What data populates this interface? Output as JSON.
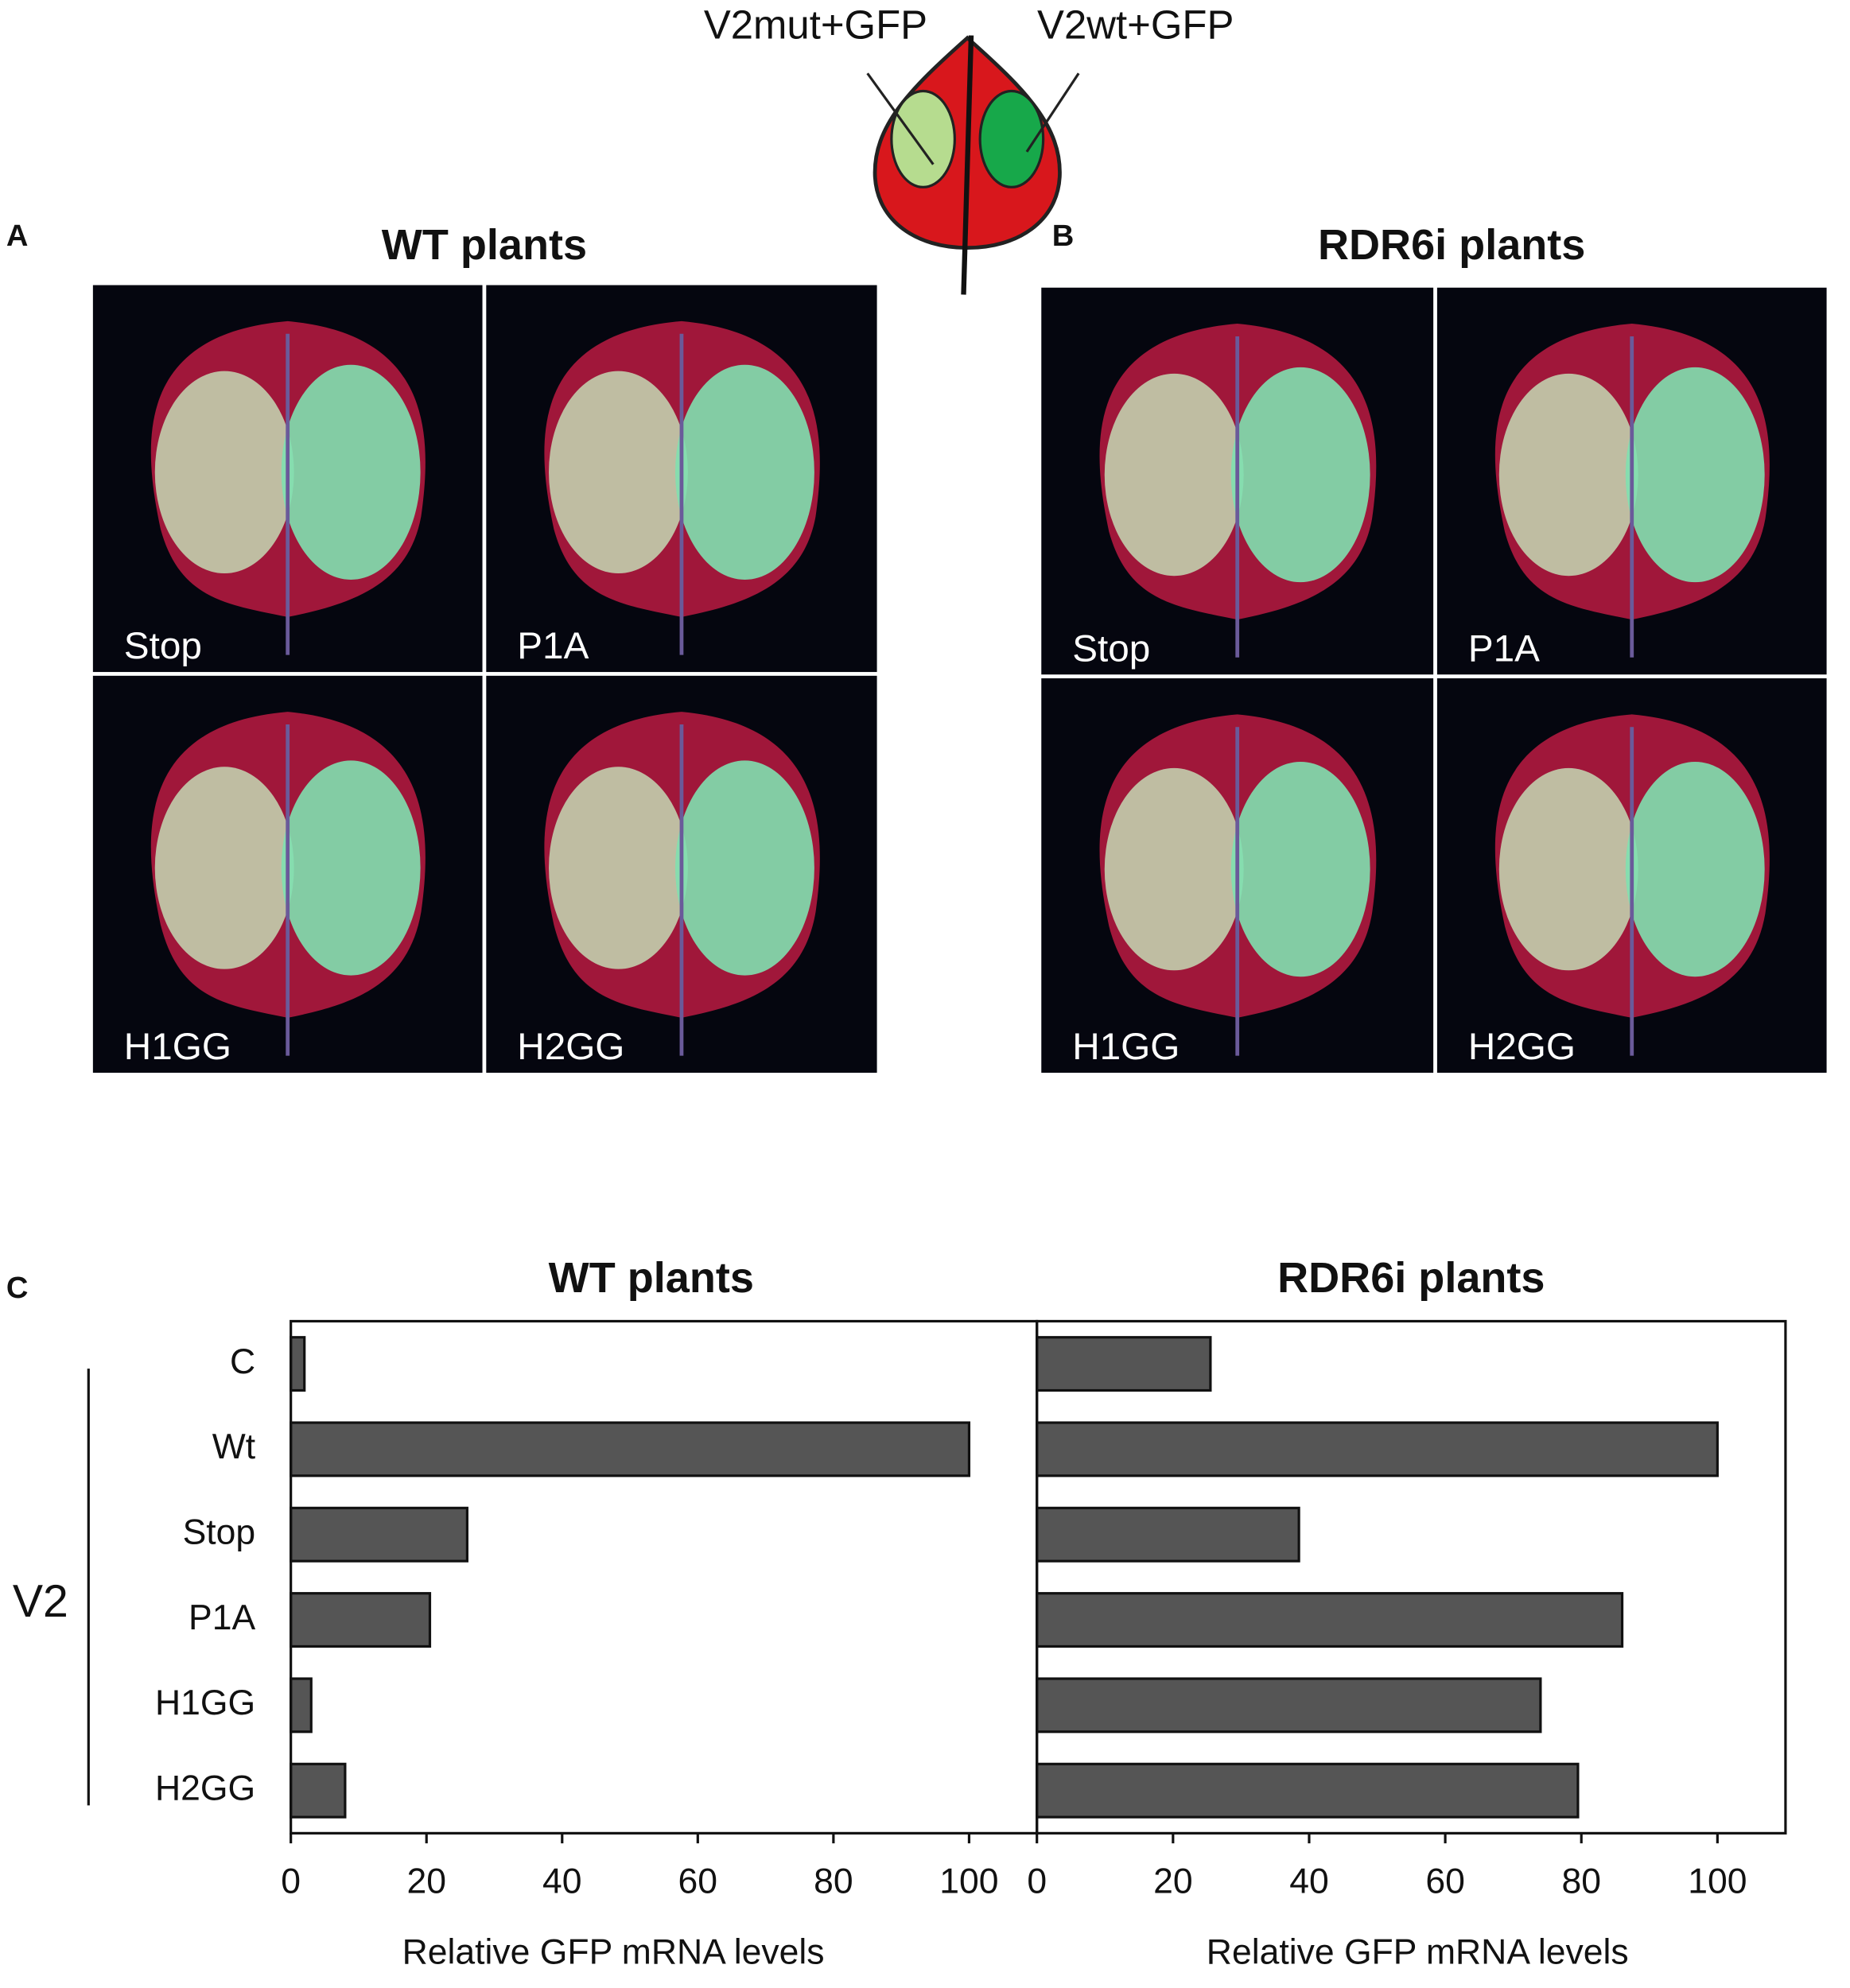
{
  "panels": {
    "a": "A",
    "b": "B",
    "c": "C"
  },
  "diagram": {
    "left_label": "V2mut+GFP",
    "right_label": "V2wt+GFP"
  },
  "photos": {
    "wt_title": "WT plants",
    "rdr6i_title": "RDR6i plants",
    "wt_labels": [
      "Stop",
      "P1A",
      "H1GG",
      "H2GG"
    ],
    "rdr6i_labels": [
      "Stop",
      "P1A",
      "H1GG",
      "H2GG"
    ]
  },
  "chart_data": [
    {
      "type": "barh",
      "title": "WT plants",
      "categories": [
        "C",
        "Wt",
        "Stop",
        "P1A",
        "H1GG",
        "H2GG"
      ],
      "group_label": "V2",
      "values": [
        2,
        100,
        26,
        20.5,
        3,
        8
      ],
      "color": "#555555",
      "xlim": [
        0,
        110
      ],
      "xticks": [
        0,
        20,
        40,
        60,
        80,
        100
      ],
      "x_label": "Relative  GFP mRNA levels",
      "grid": false
    },
    {
      "type": "barh",
      "title": "RDR6i plants",
      "values": [
        25.5,
        100,
        38.5,
        86,
        74,
        79.5
      ],
      "color": "#555555",
      "xlim": [
        0,
        110
      ],
      "xticks": [
        0,
        20,
        40,
        60,
        80,
        100
      ],
      "x_label": "Relative  GFP mRNA levels",
      "grid": false
    }
  ]
}
